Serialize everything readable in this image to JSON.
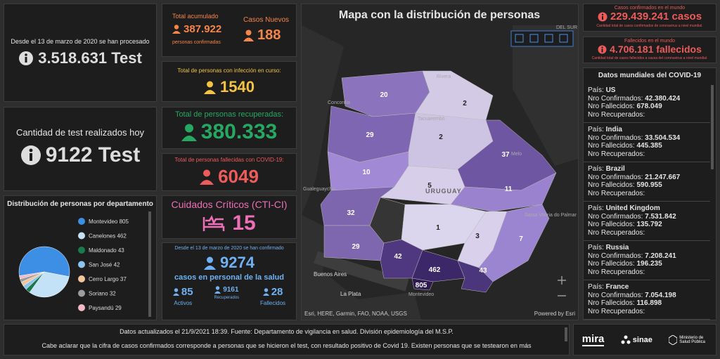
{
  "tests_total": {
    "caption": "Desde el 13 de marzo de 2020 se han procesado",
    "value": "3.518.631 Test"
  },
  "tests_today": {
    "caption": "Cantidad de test realizados hoy",
    "value": "9122 Test"
  },
  "pie": {
    "type": "pie",
    "title": "Distribución de personas por departamento",
    "categories": [
      "Montevideo",
      "Canelones",
      "Maldonado",
      "San José",
      "Cerro Largo",
      "Soriano",
      "Paysandú"
    ],
    "values": [
      805,
      462,
      43,
      42,
      37,
      32,
      29
    ],
    "colors": [
      "#3d8fe6",
      "#c3e1f7",
      "#1b7a4b",
      "#8cc3ef",
      "#f4c49b",
      "#9c9c9c",
      "#f2b8c6"
    ]
  },
  "cumulative": {
    "title": "Total acumulado",
    "value": "387.922",
    "caption": "personas confirmadas",
    "new_title": "Casos Nuevos",
    "new_value": "188"
  },
  "active": {
    "title": "Total de personas con infección en curso:",
    "value": "1540"
  },
  "recovered": {
    "title": "Total de personas recuperadas:",
    "value": "380.333"
  },
  "deceased": {
    "title": "Total de personas fallecidas con COVID-19:",
    "value": "6049"
  },
  "cti": {
    "title": "Cuidados Críticos (CTI-CI)",
    "value": "15"
  },
  "health_staff": {
    "caption": "Desde el 13 de marzo de 2020 se han confirmado",
    "value": "9274",
    "subtitle": "casos en personal de la salud",
    "items": [
      {
        "value": "85",
        "label": "Activos"
      },
      {
        "value": "9161",
        "label": "Recuperados"
      },
      {
        "value": "28",
        "label": "Fallecidos"
      }
    ]
  },
  "map": {
    "title": "Mapa con la distribución de personas",
    "regions": [
      "20",
      "2",
      "29",
      "2",
      "37",
      "10",
      "5",
      "11",
      "32",
      "1",
      "29",
      "3",
      "7",
      "42",
      "462",
      "43",
      "805"
    ],
    "places": [
      "Concordia",
      "Tacuarembó",
      "Rivera",
      "Melo",
      "Gualeguaychú",
      "URUGUAY",
      "Santa Vitória do Palmar",
      "Buenos Aires",
      "La Plata",
      "Montevideo",
      "DEL SUR"
    ],
    "attribution": "Esri, HERE, Garmin, FAO, NOAA, USGS",
    "powered": "Powered by Esri"
  },
  "world_cases": {
    "title": "Casos confirmados en el mundo",
    "value": "229.439.241 casos",
    "caption": "Cantidad total de casos confirmados de coronavirus a nivel mundial."
  },
  "world_deaths": {
    "title": "Fallecidos en el mundo",
    "value": "4.706.181 fallecidos",
    "caption": "Cantidad total de casos fallecidos a causa del coronavirus a nivel mundial."
  },
  "world_list": {
    "title": "Datos mundiales del COVID-19",
    "labels": {
      "country": "País:",
      "confirmed": "Nro Confirmados:",
      "deaths": "Nro Fallecidos:",
      "recovered": "Nro Recuperados:"
    },
    "items": [
      {
        "country": "US",
        "confirmed": "42.380.424",
        "deaths": "678.049"
      },
      {
        "country": "India",
        "confirmed": "33.504.534",
        "deaths": "445.385"
      },
      {
        "country": "Brazil",
        "confirmed": "21.247.667",
        "deaths": "590.955"
      },
      {
        "country": "United Kingdom",
        "confirmed": "7.531.842",
        "deaths": "135.792"
      },
      {
        "country": "Russia",
        "confirmed": "7.208.241",
        "deaths": "196.235"
      },
      {
        "country": "France",
        "confirmed": "7.054.198",
        "deaths": "116.898"
      }
    ]
  },
  "footer": {
    "updated": "Datos actualizados el 21/9/2021 18:39. Fuente: Departamento de vigilancia en salud. División epidemiología del M.S.P.",
    "note": "Cabe aclarar que la cifra de casos confirmados corresponde a personas que se hicieron el test, con resultado positivo de Covid 19. Existen personas que se testearon en más"
  },
  "logos": [
    "mira",
    "sinae",
    "Ministerio de Salud Pública"
  ]
}
